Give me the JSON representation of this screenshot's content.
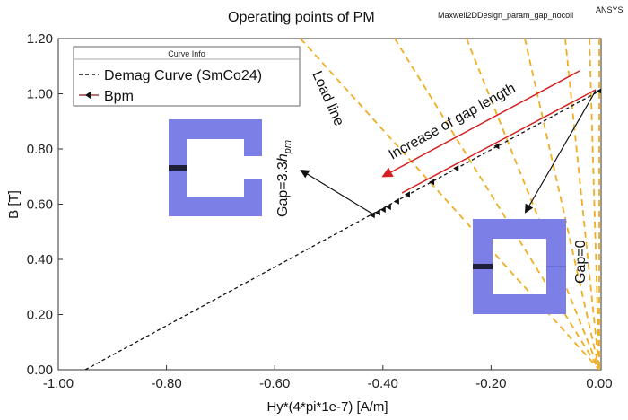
{
  "chart_data": {
    "type": "line",
    "title": "Operating points of PM",
    "design_name": "Maxwell2DDesign_param_gap_nocoil",
    "vendor": "ANSYS",
    "xlabel": "Hy*(4*pi*1e-7) [A/m]",
    "ylabel": "B [T]",
    "xlim": [
      -1.0,
      0.0
    ],
    "ylim": [
      0.0,
      1.2
    ],
    "xticks": [
      -1.0,
      -0.8,
      -0.6,
      -0.4,
      -0.2,
      0.0
    ],
    "xtick_labels": [
      "-1.00",
      "-0.80",
      "-0.60",
      "-0.40",
      "-0.20",
      "0.00"
    ],
    "yticks": [
      0.0,
      0.2,
      0.4,
      0.6,
      0.8,
      1.0,
      1.2
    ],
    "ytick_labels": [
      "0.00",
      "0.20",
      "0.40",
      "0.60",
      "0.80",
      "1.00",
      "1.20"
    ],
    "legend": {
      "title": "Curve Info",
      "placement": "top-left",
      "entries": [
        "Demag Curve (SmCo24)",
        "Bpm"
      ]
    },
    "series": [
      {
        "name": "Demag Curve (SmCo24)",
        "style": "dashed",
        "color": "#111111",
        "x": [
          -0.95,
          0.0
        ],
        "y": [
          0.0,
          1.01
        ]
      },
      {
        "name": "Bpm",
        "style": "markers",
        "color": "#8a1a1a",
        "x": [
          0.0,
          -0.19,
          -0.265,
          -0.31,
          -0.355,
          -0.375,
          -0.39,
          -0.4,
          -0.41,
          -0.42
        ],
        "y": [
          1.01,
          0.81,
          0.73,
          0.68,
          0.635,
          0.61,
          0.59,
          0.58,
          0.57,
          0.56
        ]
      }
    ],
    "load_lines_color": "#f0ad22",
    "annotations": {
      "load_line": "Load line",
      "increase": "Increase of gap length",
      "gap_large": "Gap=3.3",
      "gap_large_symbol": "h",
      "gap_large_subscript": "pm",
      "gap_zero": "Gap=0"
    },
    "colors": {
      "core": "#7b7fe6",
      "magnet": "#1f1f3a",
      "red_arrow": "#d42020"
    }
  }
}
